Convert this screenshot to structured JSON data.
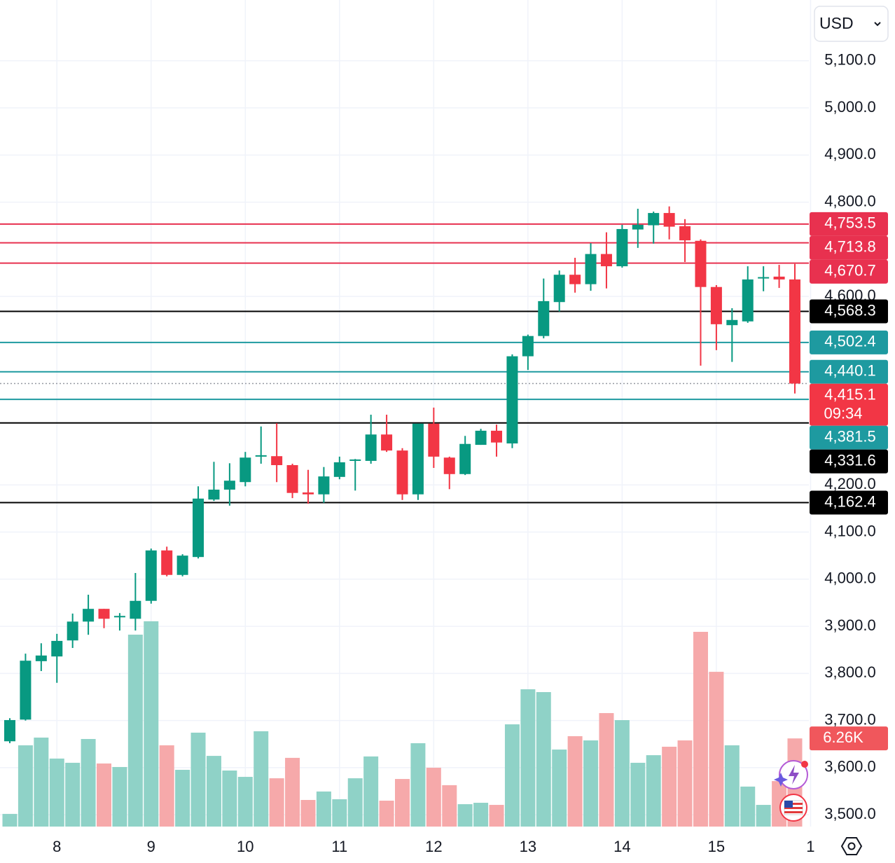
{
  "chart_data": {
    "type": "candlestick",
    "currency": "USD",
    "categories": [
      null,
      null,
      null,
      "8",
      null,
      null,
      null,
      null,
      null,
      "9",
      null,
      null,
      null,
      null,
      null,
      "10",
      null,
      null,
      null,
      null,
      null,
      "11",
      null,
      null,
      null,
      null,
      null,
      "12",
      null,
      null,
      null,
      null,
      null,
      "13",
      null,
      null,
      null,
      null,
      null,
      "14",
      null,
      null,
      null,
      null,
      null,
      "15",
      null,
      null,
      null,
      null,
      null,
      "1"
    ],
    "open": [
      3656,
      3702,
      3826,
      3836,
      3870,
      3910,
      3937,
      3919,
      3916,
      3954,
      4061,
      4009,
      4047,
      4169,
      4190,
      4206,
      4260,
      4261,
      4242,
      4184,
      4180,
      4217,
      4251,
      4251,
      4307,
      4273,
      4180,
      4330,
      4258,
      4223,
      4285,
      4315,
      4288,
      4473,
      4516,
      4588,
      4646,
      4626,
      4690,
      4664,
      4742,
      4751,
      4777,
      4749,
      4718,
      4620,
      4539,
      4547,
      4638,
      4642,
      4636,
      null
    ],
    "high": [
      3705,
      3842,
      3864,
      3884,
      3927,
      3967,
      3937,
      3928,
      4013,
      4065,
      4069,
      4053,
      4197,
      4249,
      4246,
      4270,
      4324,
      4331,
      4245,
      4232,
      4238,
      4260,
      4255,
      4349,
      4349,
      4278,
      4330,
      4364,
      4260,
      4304,
      4319,
      4328,
      4477,
      4519,
      4638,
      4655,
      4682,
      4713,
      4736,
      4752,
      4786,
      4780,
      4791,
      4764,
      4721,
      4624,
      4575,
      4664,
      4664,
      4667,
      4669,
      null
    ],
    "low": [
      3652,
      3700,
      3805,
      3780,
      3854,
      3882,
      3896,
      3891,
      3891,
      3948,
      4006,
      4006,
      4044,
      4166,
      4156,
      4197,
      4245,
      4206,
      4172,
      4160,
      4162,
      4212,
      4188,
      4245,
      4270,
      4168,
      4168,
      4236,
      4191,
      4221,
      4285,
      4260,
      4278,
      4444,
      4511,
      4568,
      4608,
      4612,
      4617,
      4661,
      4703,
      4712,
      4721,
      4673,
      4453,
      4486,
      4461,
      4544,
      4611,
      4618,
      4394,
      null
    ],
    "close": [
      3701,
      3827,
      3838,
      3869,
      3910,
      3937,
      3916,
      3922,
      3954,
      4061,
      4009,
      4050,
      4171,
      4190,
      4209,
      4258,
      4263,
      4242,
      4183,
      4180,
      4218,
      4248,
      4254,
      4307,
      4273,
      4180,
      4330,
      4260,
      4223,
      4287,
      4315,
      4290,
      4473,
      4516,
      4590,
      4646,
      4626,
      4690,
      4664,
      4743,
      4752,
      4777,
      4748,
      4719,
      4620,
      4541,
      4550,
      4636,
      4641,
      4636,
      4415.1,
      null
    ],
    "up_color": "#089981",
    "down_color": "#f23645",
    "volume": {
      "values": [
        0.9,
        5.77,
        6.32,
        4.83,
        4.53,
        6.22,
        4.48,
        4.23,
        13.63,
        14.58,
        5.77,
        4.03,
        6.67,
        5.02,
        3.98,
        3.53,
        6.77,
        3.43,
        4.88,
        1.89,
        2.49,
        1.94,
        3.43,
        4.98,
        1.84,
        3.38,
        5.92,
        4.18,
        2.94,
        1.59,
        1.69,
        1.54,
        7.26,
        9.75,
        9.55,
        5.47,
        6.42,
        6.12,
        8.06,
        7.56,
        4.53,
        5.07,
        5.67,
        6.12,
        13.83,
        10.99,
        5.77,
        2.84,
        1.54,
        3.23,
        6.26,
        null
      ],
      "value_labels": [
        null,
        null,
        null,
        null,
        null,
        null,
        null,
        null,
        null,
        null,
        null,
        null,
        null,
        null,
        null,
        null,
        null,
        null,
        null,
        null,
        null,
        null,
        null,
        null,
        null,
        null,
        null,
        null,
        null,
        null,
        null,
        null,
        null,
        null,
        null,
        null,
        null,
        null,
        null,
        null,
        null,
        null,
        null,
        null,
        null,
        null,
        null,
        null,
        null,
        null,
        "6.26K",
        null
      ],
      "axis": "y2",
      "up_color": "#8fd2c7",
      "down_color": "#f6a9aa",
      "label_color": "#f0575c"
    },
    "ylim": [
      3475,
      5229
    ],
    "y2lim": [
      0,
      58.7
    ],
    "yticks": [
      {
        "value": 3500,
        "label": "3,500.0"
      },
      {
        "value": 3600,
        "label": "3,600.0"
      },
      {
        "value": 3700,
        "label": "3,700.0"
      },
      {
        "value": 3800,
        "label": "3,800.0"
      },
      {
        "value": 3900,
        "label": "3,900.0"
      },
      {
        "value": 4000,
        "label": "4,000.0"
      },
      {
        "value": 4100,
        "label": "4,100.0"
      },
      {
        "value": 4200,
        "label": "4,200.0"
      },
      {
        "value": 4600,
        "label": "4,600.0"
      },
      {
        "value": 4800,
        "label": "4,800.0"
      },
      {
        "value": 4900,
        "label": "4,900.0"
      },
      {
        "value": 5000,
        "label": "5,000.0"
      },
      {
        "value": 5100,
        "label": "5,100.0"
      }
    ],
    "grid": true,
    "price_lines": [
      {
        "value": 4753.5,
        "label": "4,753.5",
        "color": "#e8314f"
      },
      {
        "value": 4713.8,
        "label": "4,713.8",
        "color": "#e8314f"
      },
      {
        "value": 4670.7,
        "label": "4,670.7",
        "color": "#e8314f"
      },
      {
        "value": 4568.3,
        "label": "4,568.3",
        "color": "#000000"
      },
      {
        "value": 4502.4,
        "label": "4,502.4",
        "color": "#1e9aa0"
      },
      {
        "value": 4440.1,
        "label": "4,440.1",
        "color": "#1e9aa0"
      },
      {
        "value": 4415.1,
        "label": "4,415.1",
        "color": "#f23645",
        "countdown": "09:34",
        "dotted": true
      },
      {
        "value": 4381.5,
        "label": "4,381.5",
        "color": "#1e9aa0"
      },
      {
        "value": 4331.6,
        "label": "4,331.6",
        "color": "#000000"
      },
      {
        "value": 4162.4,
        "label": "4,162.4",
        "color": "#000000"
      }
    ]
  }
}
